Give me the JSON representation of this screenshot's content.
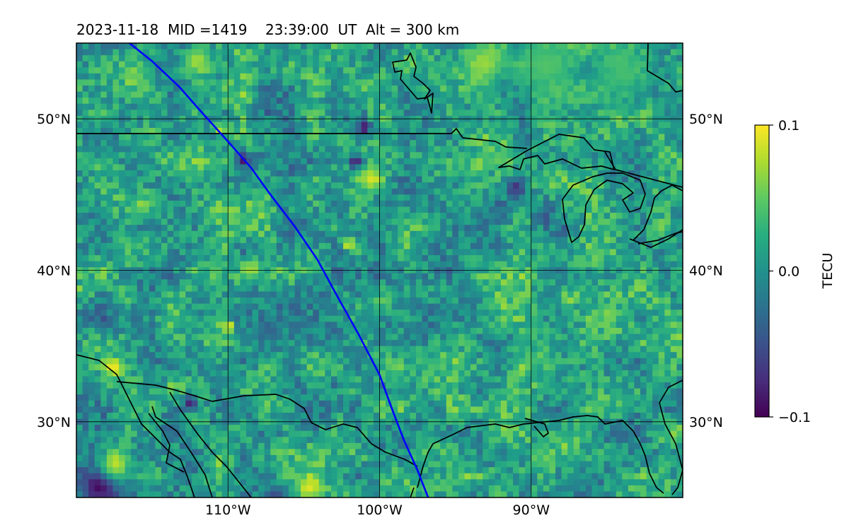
{
  "chart_data": {
    "type": "heatmap",
    "title": "2023-11-18  MID =1419    23:39:00  UT  Alt = 300 km",
    "extent": {
      "lon": [
        -120,
        -80
      ],
      "lat": [
        25,
        55
      ]
    },
    "x_ticks": [
      {
        "value": -110,
        "label": "110°W"
      },
      {
        "value": -100,
        "label": "100°W"
      },
      {
        "value": -90,
        "label": "90°W"
      }
    ],
    "y_ticks": [
      {
        "value": 30,
        "label": "30°N"
      },
      {
        "value": 40,
        "label": "40°N"
      },
      {
        "value": 50,
        "label": "50°N"
      }
    ],
    "grid": true,
    "colorbar": {
      "label": "TECU",
      "colormap": "viridis",
      "min": -0.1,
      "max": 0.1,
      "ticks": [
        {
          "value": 0.1,
          "label": "0.1"
        },
        {
          "value": 0.0,
          "label": "0.0"
        },
        {
          "value": -0.1,
          "label": "−0.1"
        }
      ]
    },
    "track": {
      "color": "#0000ff",
      "points": [
        [
          -116.5,
          55.0
        ],
        [
          -115.0,
          53.8
        ],
        [
          -113.2,
          52.1
        ],
        [
          -111.8,
          50.5
        ],
        [
          -110.0,
          48.5
        ],
        [
          -108.5,
          46.8
        ],
        [
          -107.2,
          45.0
        ],
        [
          -105.6,
          42.9
        ],
        [
          -104.1,
          40.7
        ],
        [
          -102.8,
          38.3
        ],
        [
          -101.4,
          35.8
        ],
        [
          -100.0,
          33.1
        ],
        [
          -99.2,
          30.9
        ],
        [
          -98.4,
          28.8
        ],
        [
          -97.5,
          26.8
        ],
        [
          -96.8,
          25.0
        ]
      ]
    },
    "anomalies": [
      {
        "lon": -118.5,
        "lat": 25.8,
        "r": 1.5,
        "v": -0.1
      },
      {
        "lon": -117.4,
        "lat": 27.3,
        "r": 1.2,
        "v": 0.08
      },
      {
        "lon": -117.6,
        "lat": 33.6,
        "r": 0.7,
        "v": 0.1
      },
      {
        "lon": -104.6,
        "lat": 25.7,
        "r": 0.9,
        "v": 0.09
      },
      {
        "lon": -112.0,
        "lat": 53.9,
        "r": 1.0,
        "v": 0.07
      },
      {
        "lon": -93.0,
        "lat": 53.7,
        "r": 1.6,
        "v": 0.07
      },
      {
        "lon": -89.0,
        "lat": 53.5,
        "r": 2.5,
        "v": 0.045
      },
      {
        "lon": -84.0,
        "lat": 53.0,
        "r": 2.0,
        "v": 0.04
      },
      {
        "lon": -100.5,
        "lat": 46.0,
        "r": 0.8,
        "v": 0.09
      },
      {
        "lon": -101.0,
        "lat": 49.4,
        "r": 0.5,
        "v": -0.1
      },
      {
        "lon": -101.6,
        "lat": 47.2,
        "r": 0.5,
        "v": -0.09
      },
      {
        "lon": -109.0,
        "lat": 47.3,
        "r": 0.5,
        "v": -0.09
      },
      {
        "lon": -110.5,
        "lat": 49.3,
        "r": 0.5,
        "v": 0.09
      },
      {
        "lon": -112.5,
        "lat": 31.3,
        "r": 0.5,
        "v": -0.09
      },
      {
        "lon": -110.0,
        "lat": 36.3,
        "r": 0.4,
        "v": 0.1
      },
      {
        "lon": -102.0,
        "lat": 41.7,
        "r": 0.4,
        "v": 0.1
      },
      {
        "lon": -108.5,
        "lat": 40.0,
        "r": 0.7,
        "v": 0.07
      },
      {
        "lon": -93.5,
        "lat": 47.0,
        "r": 0.6,
        "v": 0.07
      },
      {
        "lon": -91.0,
        "lat": 45.5,
        "r": 0.7,
        "v": -0.07
      },
      {
        "lon": -106.8,
        "lat": 24.9,
        "r": 1.0,
        "v": -0.06
      }
    ]
  }
}
